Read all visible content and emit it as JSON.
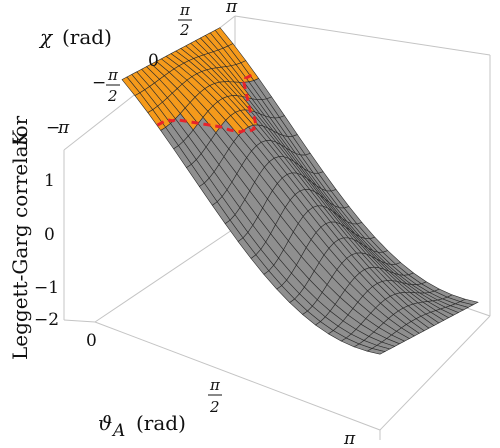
{
  "chart_data": {
    "type": "surface3d",
    "title": "",
    "axes": {
      "x": {
        "label": "ϑ_A (rad)",
        "ticks": [
          "0",
          "π/2",
          "π"
        ],
        "range": [
          0,
          3.14159
        ]
      },
      "y": {
        "label": "χ (rad)",
        "ticks": [
          "−π",
          "−π/2",
          "0",
          "π/2",
          "π"
        ],
        "range": [
          -3.14159,
          3.14159
        ]
      },
      "z": {
        "label": "Leggett-Garg correlator K",
        "ticks": [
          "−2",
          "−1",
          "0",
          "1"
        ],
        "range": [
          -2.2,
          1.6
        ]
      }
    },
    "surface": {
      "grid": "20x20 mesh",
      "color": "#8f8f8f",
      "highlight_region": {
        "description": "K > 1 (violation)",
        "color": "#f59a1b"
      },
      "boundary_curve": {
        "style": "dashed",
        "color": "#e8232a"
      }
    },
    "box_color": "#bfbfbf"
  },
  "labels": {
    "chi_prefix": "χ",
    "chi_unit": "(rad)",
    "theta": "ϑ",
    "theta_sub": "A",
    "theta_unit": "(rad)",
    "z_label": "Leggett-Garg correlator",
    "z_var": "K",
    "pi": "π",
    "two": "2",
    "minus": "−",
    "zero": "0",
    "z_ticks": [
      "1",
      "0",
      "−1",
      "−2"
    ]
  }
}
